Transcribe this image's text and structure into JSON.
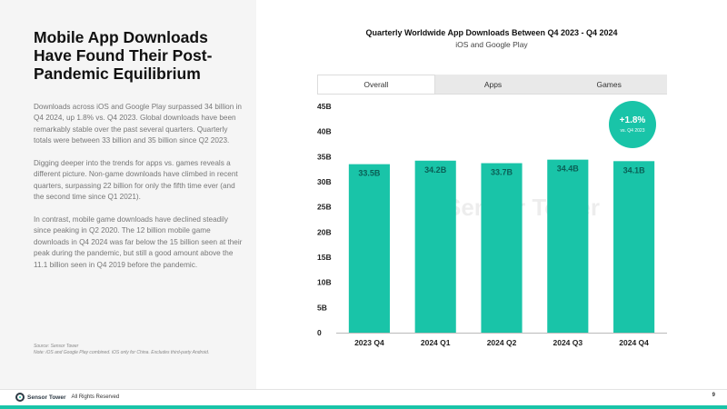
{
  "slide": {
    "title": "Mobile App Downloads Have Found Their Post-Pandemic Equilibrium",
    "paragraphs": [
      "Downloads across iOS and Google Play surpassed 34 billion in Q4 2024, up 1.8% vs. Q4 2023. Global downloads have been remarkably stable over the past several quarters. Quarterly totals were between 33 billion and 35 billion since Q2 2023.",
      "Digging deeper into the trends for apps vs. games reveals a different picture. Non-game downloads have climbed in recent quarters, surpassing 22 billion for only the fifth time ever (and the second time since Q1 2021).",
      "In contrast, mobile game downloads have declined steadily since peaking in Q2 2020. The 12 billion mobile game downloads in Q4 2024 was far below the 15 billion seen at their peak during the pandemic, but still a good amount above the 11.1 billion seen in Q4 2019 before the pandemic."
    ],
    "source": "Source: Sensor Tower",
    "note": "Note: iOS and Google Play combined. iOS only for China. Excludes third-party Android."
  },
  "tabs": [
    {
      "label": "Overall",
      "active": true
    },
    {
      "label": "Apps",
      "active": false
    },
    {
      "label": "Games",
      "active": false
    }
  ],
  "badge": {
    "value": "+1.8%",
    "label": "vs. Q4 2023"
  },
  "watermark": "Sensor Tower",
  "footer": {
    "logo_text": "Sensor Tower",
    "rights": "All Rights Reserved",
    "page_number": "9"
  },
  "colors": {
    "accent": "#19c4a8",
    "bar": "#19c4a8"
  },
  "chart_data": {
    "type": "bar",
    "title": "Quarterly Worldwide App Downloads Between Q4 2023 - Q4 2024",
    "subtitle": "iOS and Google Play",
    "categories": [
      "2023 Q4",
      "2024 Q1",
      "2024 Q2",
      "2024 Q3",
      "2024 Q4"
    ],
    "values": [
      33.5,
      34.2,
      33.7,
      34.4,
      34.1
    ],
    "data_labels": [
      "33.5B",
      "34.2B",
      "33.7B",
      "34.4B",
      "34.1B"
    ],
    "y_ticks": [
      0,
      5,
      10,
      15,
      20,
      25,
      30,
      35,
      40,
      45
    ],
    "y_tick_labels": [
      "0",
      "5B",
      "10B",
      "15B",
      "20B",
      "25B",
      "30B",
      "35B",
      "40B",
      "45B"
    ],
    "ylim": [
      0,
      45
    ],
    "xlabel": "",
    "ylabel": "",
    "grid": false
  }
}
